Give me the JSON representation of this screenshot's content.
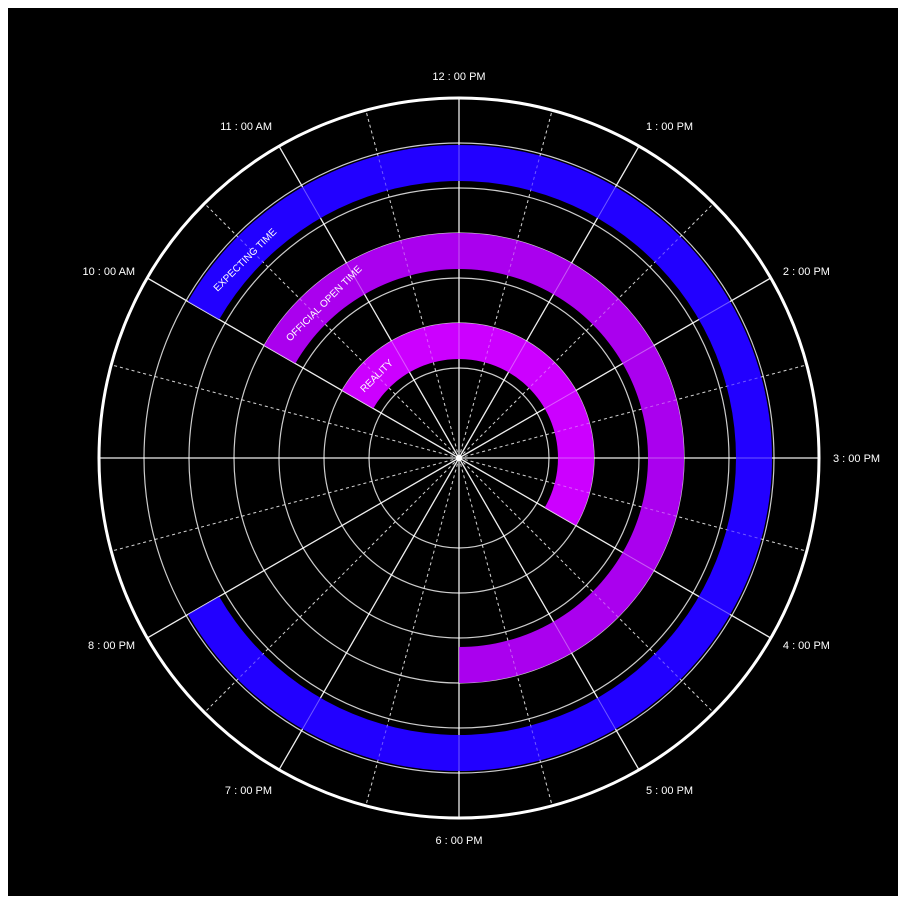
{
  "chart_data": {
    "type": "radial-clock",
    "hour_labels": [
      {
        "hour": 12,
        "text": "12 : 00 PM"
      },
      {
        "hour": 13,
        "text": "1 : 00 PM"
      },
      {
        "hour": 14,
        "text": "2 : 00 PM"
      },
      {
        "hour": 15,
        "text": "3 : 00 PM"
      },
      {
        "hour": 16,
        "text": "4 : 00 PM"
      },
      {
        "hour": 17,
        "text": "5 : 00 PM"
      },
      {
        "hour": 18,
        "text": "6 : 00 PM"
      },
      {
        "hour": 19,
        "text": "7 : 00 PM"
      },
      {
        "hour": 20,
        "text": "8 : 00 PM"
      },
      {
        "hour": 22,
        "text": "10 : 00 AM"
      },
      {
        "hour": 23,
        "text": "11 : 00 AM"
      }
    ],
    "series": [
      {
        "name": "EXPECTING TIME",
        "start_hour": 10,
        "end_hour": 20,
        "ring": 6,
        "color": "#2200ff"
      },
      {
        "name": "OFFICIAL OPEN TIME",
        "start_hour": 10,
        "end_hour": 18,
        "ring": 4,
        "color": "#aa00ee"
      },
      {
        "name": "REALITY",
        "start_hour": 10,
        "end_hour": 16,
        "ring": 2,
        "color": "#cc00ff"
      }
    ],
    "colors": {
      "background": "#000000",
      "grid": "#ffffff",
      "outer_ring": "#ffffff"
    }
  }
}
